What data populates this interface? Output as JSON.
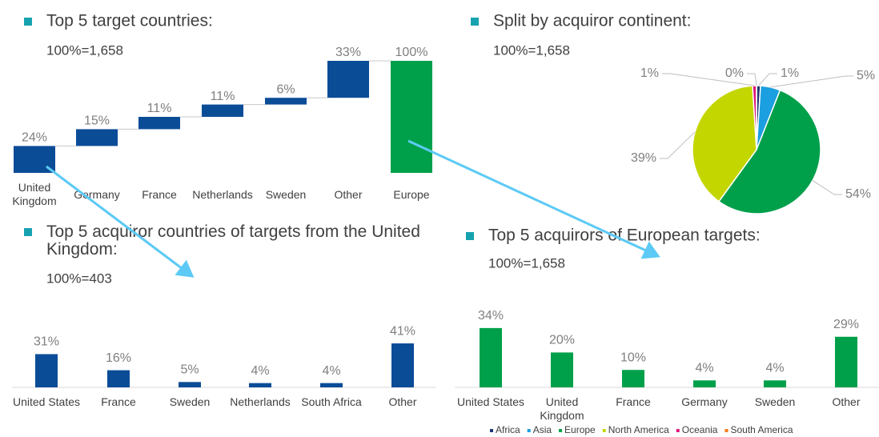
{
  "chart_data": [
    {
      "type": "waterfall",
      "title": "Top 5 target countries:",
      "subtitle": "100%=1,658",
      "categories": [
        "United Kingdom",
        "Germany",
        "France",
        "Netherlands",
        "Sweden",
        "Other",
        "Europe"
      ],
      "values": [
        24,
        15,
        11,
        11,
        6,
        33,
        100
      ],
      "value_labels": [
        "24%",
        "15%",
        "11%",
        "11%",
        "6%",
        "33%",
        "100%"
      ],
      "colors": [
        "#0b4c97",
        "#0b4c97",
        "#0b4c97",
        "#0b4c97",
        "#0b4c97",
        "#0b4c97",
        "#00a04b"
      ]
    },
    {
      "type": "pie",
      "title": "Split by acquiror continent:",
      "subtitle": "100%=1,658",
      "categories": [
        "Africa",
        "Asia",
        "Europe",
        "North America",
        "Oceania",
        "South America"
      ],
      "values": [
        1,
        5,
        54,
        39,
        1,
        0
      ],
      "value_labels": [
        "1%",
        "5%",
        "54%",
        "39%",
        "1%",
        "0%"
      ],
      "colors": [
        "#1d3573",
        "#1b9fe0",
        "#00a04b",
        "#c4d600",
        "#e0197d",
        "#f47b20"
      ],
      "legend": "bottom"
    },
    {
      "type": "bar",
      "title": "Top 5 acquiror countries of targets from the United Kingdom:",
      "subtitle": "100%=403",
      "categories": [
        "United States",
        "France",
        "Sweden",
        "Netherlands",
        "South Africa",
        "Other"
      ],
      "values": [
        31,
        16,
        5,
        4,
        4,
        41
      ],
      "value_labels": [
        "31%",
        "16%",
        "5%",
        "4%",
        "4%",
        "41%"
      ],
      "color": "#0b4c97"
    },
    {
      "type": "bar",
      "title": "Top 5 acquirors of European targets:",
      "subtitle": "100%=1,658",
      "categories": [
        "United States",
        "United Kingdom",
        "France",
        "Germany",
        "Sweden",
        "Other"
      ],
      "values": [
        34,
        20,
        10,
        4,
        4,
        29
      ],
      "value_labels": [
        "34%",
        "20%",
        "10%",
        "4%",
        "4%",
        "29%"
      ],
      "color": "#00a04b"
    }
  ]
}
